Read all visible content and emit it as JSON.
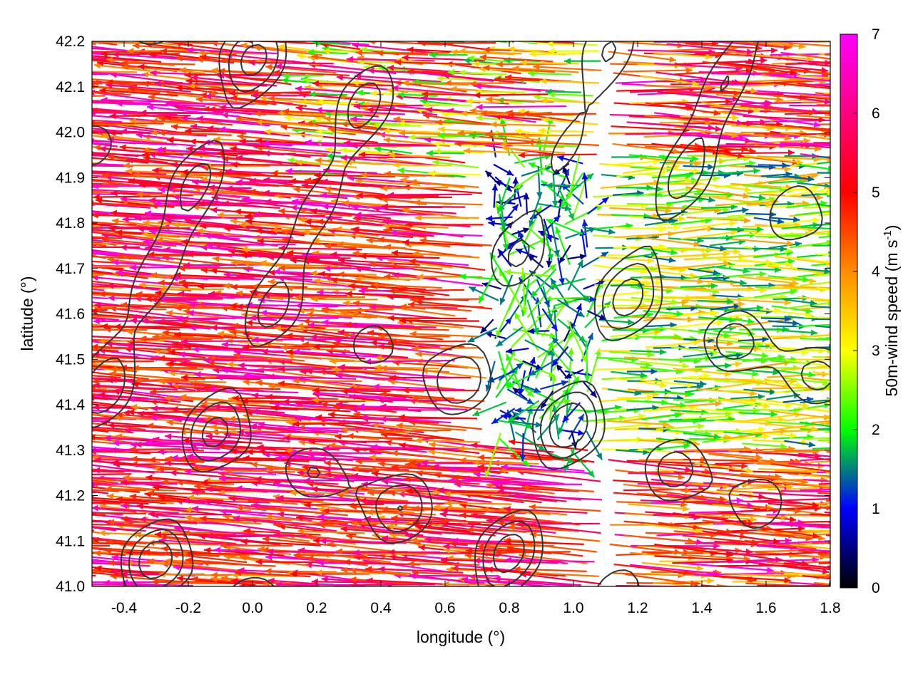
{
  "chart_data": {
    "type": "vector-field",
    "xlabel": "longitude (°)",
    "ylabel": "latitude (°)",
    "xlim": [
      -0.5,
      1.8
    ],
    "ylim": [
      41.0,
      42.2
    ],
    "x_ticks": [
      "-0.4",
      "-0.2",
      "0.0",
      "0.2",
      "0.4",
      "0.6",
      "0.8",
      "1.0",
      "1.2",
      "1.4",
      "1.6",
      "1.8"
    ],
    "y_ticks": [
      "41.0",
      "41.1",
      "41.2",
      "41.3",
      "41.4",
      "41.5",
      "41.6",
      "41.7",
      "41.8",
      "41.9",
      "42.0",
      "42.1",
      "42.2"
    ],
    "grid": true,
    "colorbar": {
      "label_main": "50m-wind speed (m s",
      "label_sup": "-1",
      "label_end": ")",
      "range": [
        0,
        7
      ],
      "ticks": [
        "0",
        "1",
        "2",
        "3",
        "4",
        "5",
        "6",
        "7"
      ],
      "colors": [
        "#000000",
        "#0000ff",
        "#00ff00",
        "#ffff00",
        "#ff8c00",
        "#ff0000",
        "#ff00ff"
      ]
    },
    "wind_field": {
      "direction": "predominantly westward (arrows pointing west) across the west and centre; calmer and variable over the 0.8–1.0 longitude corridor; eastward-oriented arrows east of 1.2",
      "max_speed": 7,
      "min_speed": 0
    },
    "contour_color": "#333333"
  }
}
